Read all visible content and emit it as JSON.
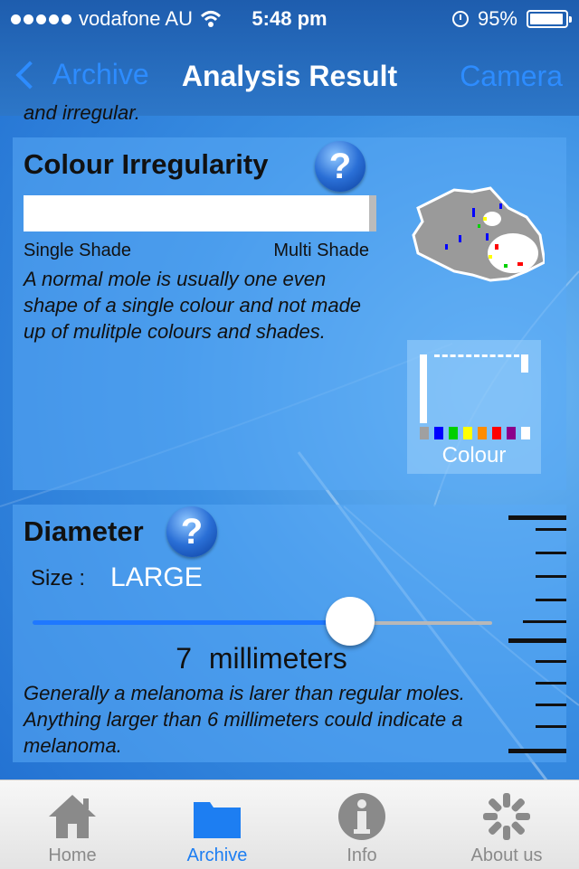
{
  "status_bar": {
    "carrier": "vodafone AU",
    "time": "5:48 pm",
    "battery": "95%",
    "signal_icon": "signal-dots-icon",
    "wifi_icon": "wifi-icon",
    "alarm_icon": "alarm-icon",
    "battery_icon": "battery-icon"
  },
  "nav": {
    "back_label": "Archive",
    "title": "Analysis Result",
    "right_label": "Camera"
  },
  "scrolled_text": "and irregular.",
  "colour_section": {
    "title": "Colour Irregularity",
    "help_glyph": "?",
    "scale_left": "Single Shade",
    "scale_right": "Multi Shade",
    "description": "A normal mole is usually one even shape of a single colour and not made up of mulitple colours and shades.",
    "palette_label": "Colour",
    "palette_colors": [
      "#a0a0a0",
      "#0000ff",
      "#00d000",
      "#ffff00",
      "#ff8c00",
      "#ff0000",
      "#8b008b",
      "#ffffff"
    ]
  },
  "diameter_section": {
    "title": "Diameter",
    "help_glyph": "?",
    "size_label": "Size :",
    "size_value": "LARGE",
    "slider_fraction": 0.69,
    "measurement_value": "7",
    "measurement_unit": "millimeters",
    "description": "Generally a melanoma is larer than regular moles. Anything larger than 6 millimeters could indicate a melanoma."
  },
  "tabs": [
    {
      "label": "Home",
      "icon": "home-icon",
      "active": false
    },
    {
      "label": "Archive",
      "icon": "folder-icon",
      "active": true
    },
    {
      "label": "Info",
      "icon": "info-icon",
      "active": false
    },
    {
      "label": "About us",
      "icon": "gear-icon",
      "active": false
    }
  ],
  "colors": {
    "accent": "#1d7ef2",
    "nav_link": "#2d8cff"
  }
}
